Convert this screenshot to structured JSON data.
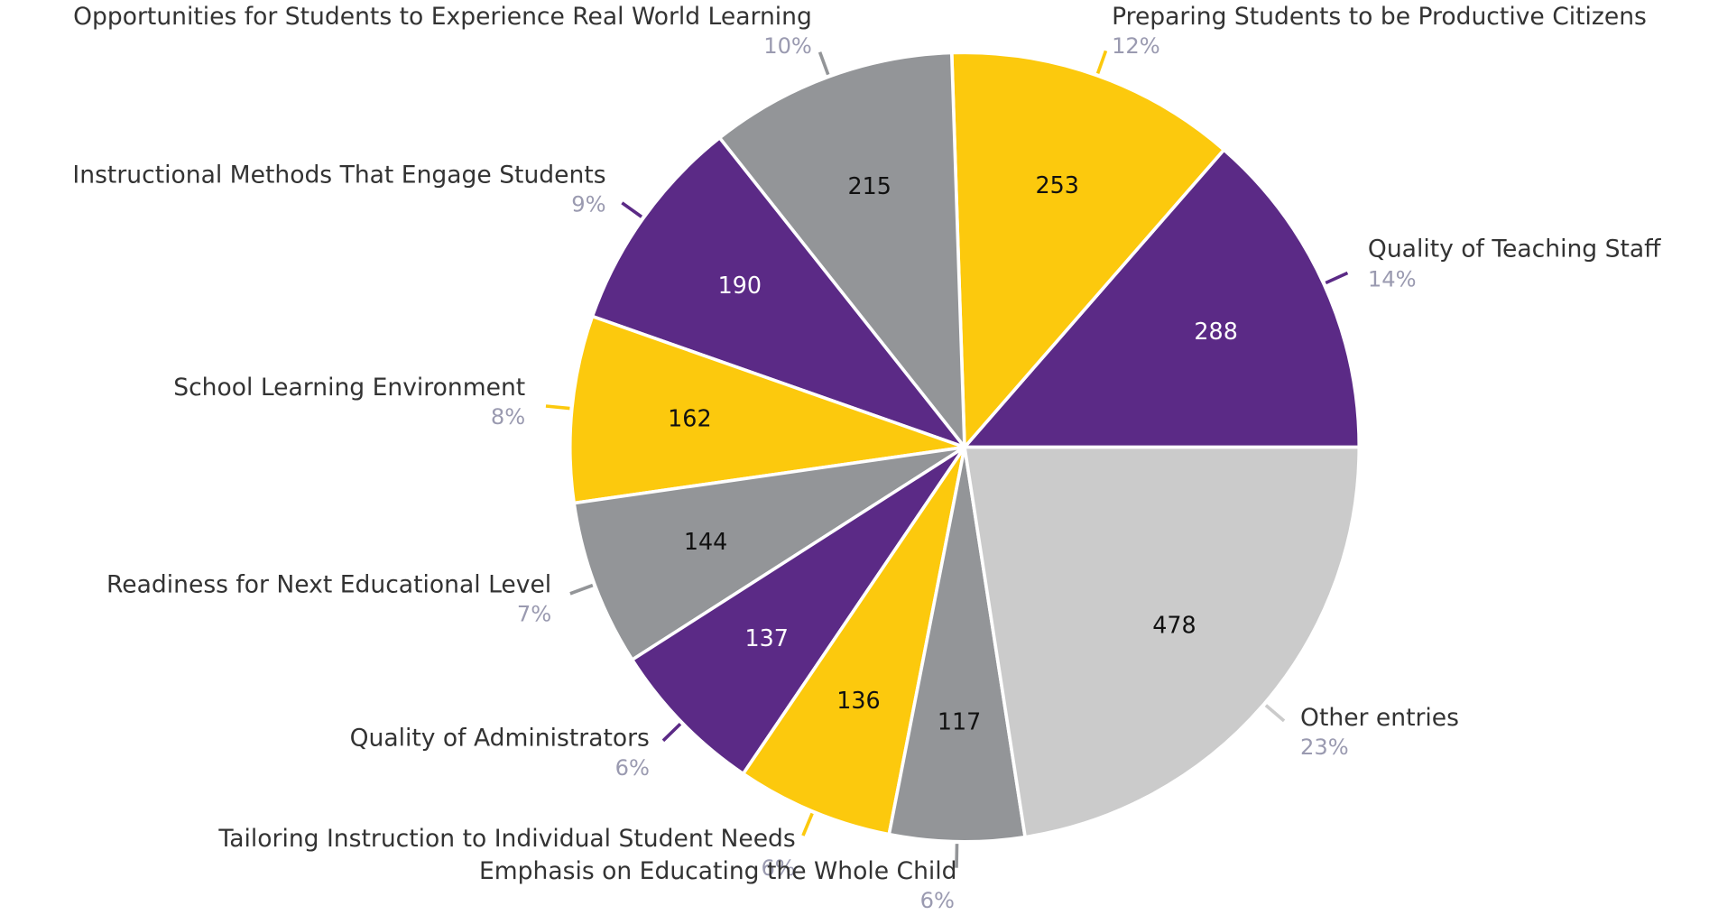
{
  "chart_data": {
    "type": "pie",
    "categories": [
      "Quality of Teaching Staff",
      "Preparing Students to be Productive Citizens",
      "Opportunities for Students to Experience Real World Learning",
      "Instructional Methods That Engage Students",
      "School Learning Environment",
      "Readiness for Next Educational Level",
      "Quality of Administrators",
      "Tailoring Instruction to Individual Student Needs",
      "Emphasis on Educating the Whole Child",
      "Other entries"
    ],
    "values": [
      288,
      253,
      215,
      190,
      162,
      144,
      137,
      136,
      117,
      478
    ],
    "percent_labels": [
      "14%",
      "12%",
      "10%",
      "9%",
      "8%",
      "7%",
      "6%",
      "6%",
      "6%",
      "23%"
    ],
    "colors": [
      "#5b2a86",
      "#fcc90d",
      "#939598",
      "#5b2a86",
      "#fcc90d",
      "#939598",
      "#5b2a86",
      "#fcc90d",
      "#939598",
      "#cbcbcb"
    ]
  }
}
